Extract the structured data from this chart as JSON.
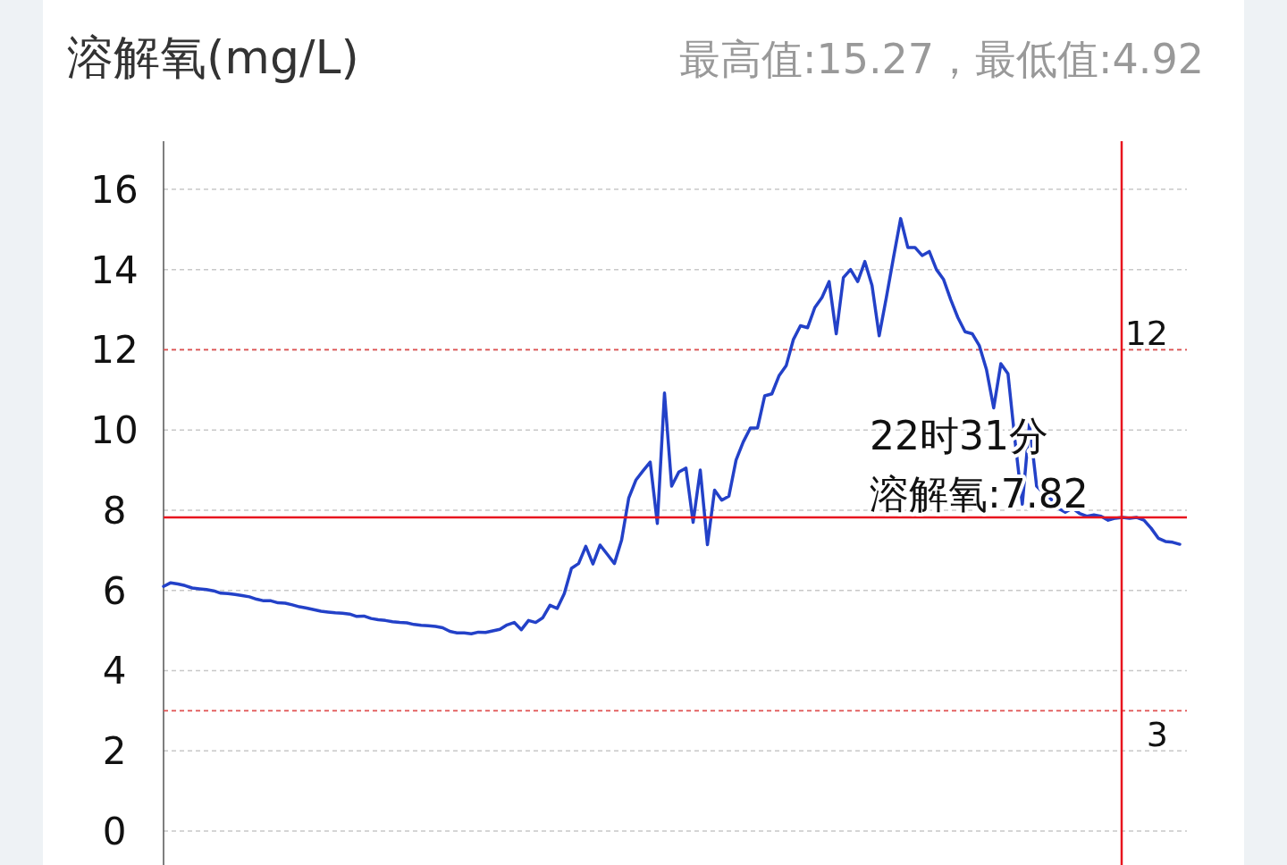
{
  "chart_data": {
    "type": "line",
    "title": "溶解氧(mg/L)",
    "subtitle": "最高值:15.27，最低值:4.92",
    "categories": [
      null,
      null,
      null,
      null,
      null,
      null,
      null,
      null,
      null,
      null,
      null,
      null,
      null,
      null,
      null,
      null,
      null,
      null,
      null,
      null,
      null,
      null,
      null,
      null,
      null,
      null,
      null,
      null,
      null,
      null,
      null,
      null,
      null,
      null,
      null,
      null,
      null,
      null,
      null,
      null,
      null,
      null,
      null,
      null,
      null,
      null,
      null,
      null,
      null,
      null,
      null,
      null,
      null,
      null,
      null,
      null,
      null,
      null,
      null,
      null,
      null,
      null,
      null,
      null,
      null,
      null,
      null,
      null,
      null,
      null,
      null,
      null,
      null,
      null,
      null,
      null,
      null,
      null,
      null,
      null,
      null,
      null,
      null,
      null,
      null,
      null,
      null,
      null,
      null,
      null,
      null,
      null,
      null,
      null,
      null,
      null,
      null,
      null,
      null,
      null,
      null,
      null,
      null,
      null,
      null,
      null,
      null,
      null,
      null,
      null,
      null,
      null,
      null,
      null,
      null,
      null,
      null,
      null,
      null,
      null,
      null,
      null,
      null,
      null,
      null,
      null,
      null,
      null,
      null,
      null,
      null,
      null,
      null,
      null,
      null,
      null,
      null,
      null,
      null,
      null,
      null,
      null,
      null
    ],
    "series": [
      {
        "color": "#2341c8",
        "line_style": "solid",
        "values": [
          6.1,
          6.19,
          6.16,
          6.12,
          6.06,
          6.04,
          6.02,
          5.99,
          5.93,
          5.92,
          5.9,
          5.87,
          5.84,
          5.78,
          5.74,
          5.74,
          5.69,
          5.68,
          5.64,
          5.59,
          5.56,
          5.52,
          5.48,
          5.46,
          5.44,
          5.43,
          5.41,
          5.35,
          5.36,
          5.3,
          5.27,
          5.25,
          5.22,
          5.2,
          5.19,
          5.15,
          5.13,
          5.12,
          5.1,
          5.07,
          4.98,
          4.94,
          4.94,
          4.92,
          4.96,
          4.95,
          4.99,
          5.03,
          5.14,
          5.2,
          5.02,
          5.25,
          5.2,
          5.32,
          5.63,
          5.55,
          5.92,
          6.55,
          6.67,
          7.1,
          6.66,
          7.13,
          6.9,
          6.67,
          7.25,
          8.3,
          8.75,
          8.98,
          9.2,
          7.67,
          10.92,
          8.6,
          8.95,
          9.05,
          7.7,
          9.0,
          7.14,
          8.5,
          8.25,
          8.35,
          9.25,
          9.7,
          10.05,
          10.05,
          10.85,
          10.9,
          11.35,
          11.6,
          12.25,
          12.6,
          12.55,
          13.05,
          13.3,
          13.7,
          12.4,
          13.8,
          14.0,
          13.7,
          14.2,
          13.6,
          12.35,
          13.3,
          14.3,
          15.27,
          14.55,
          14.55,
          14.35,
          14.45,
          14.0,
          13.75,
          13.25,
          12.8,
          12.45,
          12.4,
          12.1,
          11.5,
          10.55,
          11.65,
          11.4,
          9.7,
          8.15,
          10.15,
          8.6,
          8.42,
          8.28,
          8.05,
          7.95,
          8.05,
          7.92,
          7.85,
          7.88,
          7.85,
          7.75,
          7.8,
          7.82,
          7.8,
          7.82,
          7.75,
          7.55,
          7.3,
          7.22,
          7.2,
          7.15
        ]
      }
    ],
    "ylim": [
      0,
      17.2
    ],
    "yticks": [
      0,
      2,
      4,
      6,
      8,
      10,
      12,
      14,
      16
    ],
    "grid": "y",
    "tick_labels": "y",
    "ref_lines": [
      {
        "axis": "y",
        "value": 12,
        "label": "12",
        "color": "#e05050",
        "line_style": "dashed"
      },
      {
        "axis": "y",
        "value": 3,
        "label": "3",
        "color": "#e05050",
        "line_style": "dashed"
      },
      {
        "axis": "y",
        "value": 7.82,
        "color": "#e8141e",
        "line_style": "solid"
      }
    ],
    "annotations": [
      "22时31分",
      "溶解氧:7.82"
    ]
  }
}
